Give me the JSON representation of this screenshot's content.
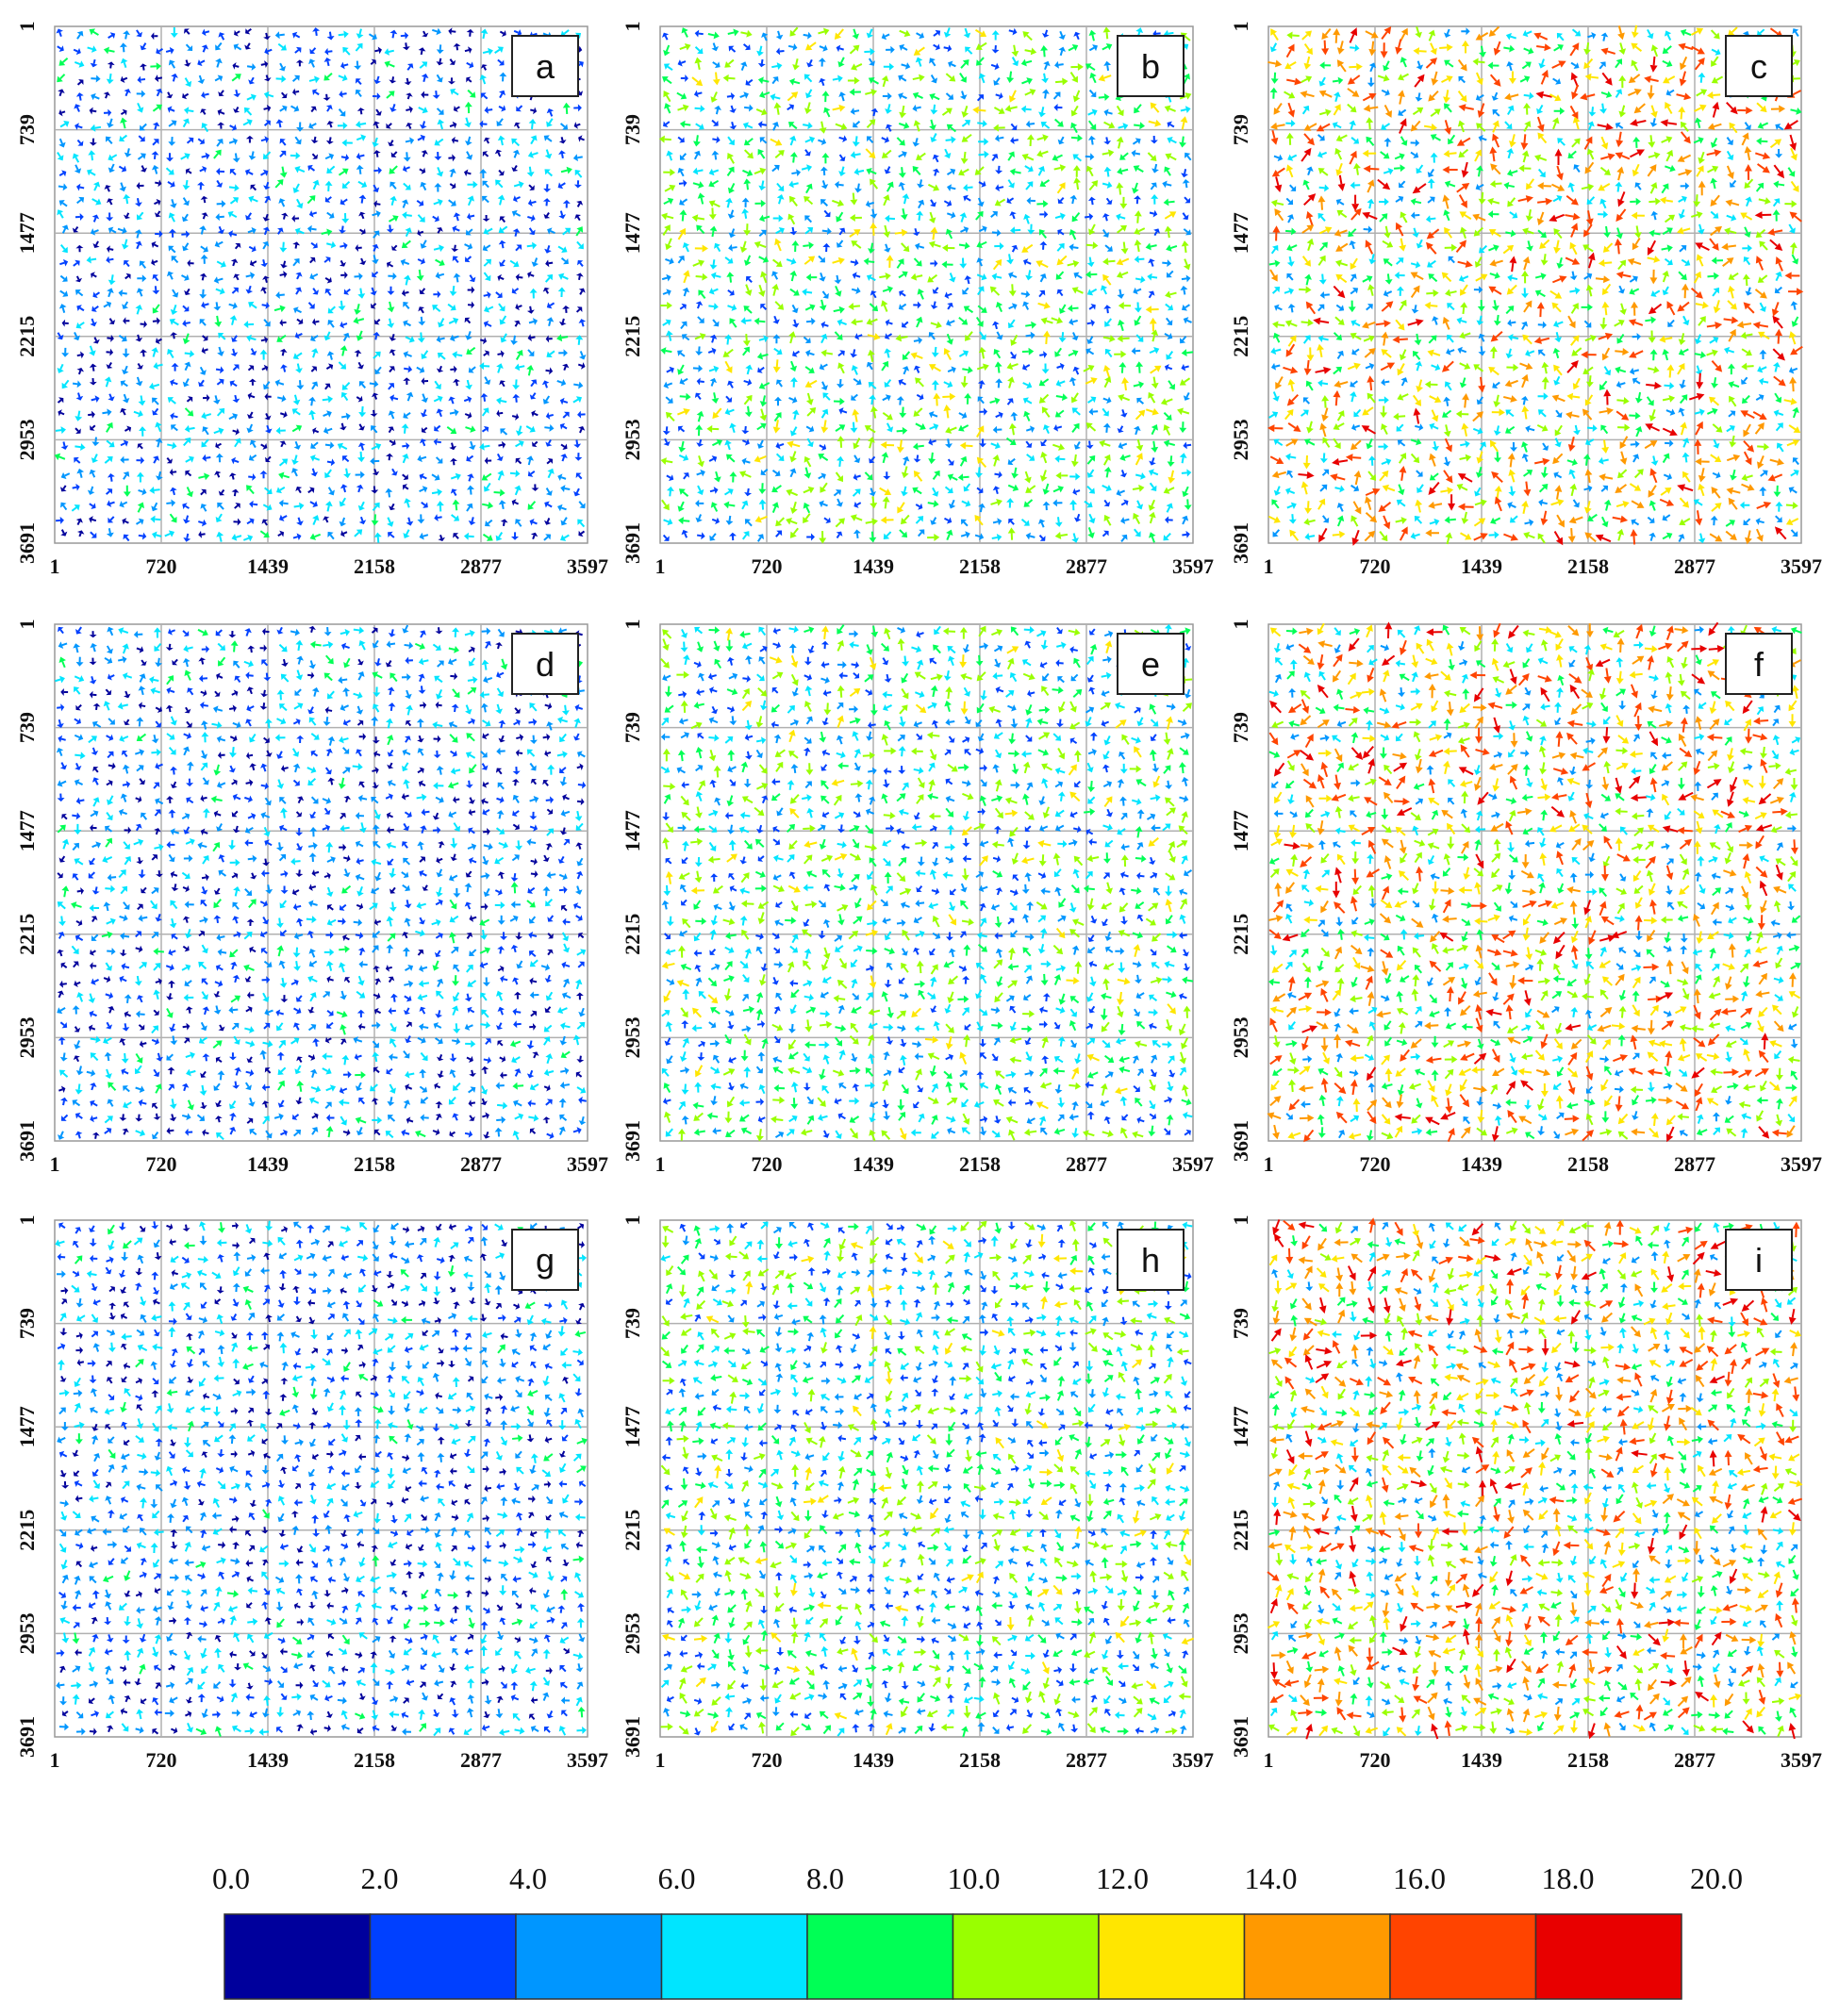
{
  "chart_data": {
    "type": "quiver",
    "title": "",
    "panels": [
      {
        "label": "a",
        "row": 0,
        "col": 0,
        "max_magnitude": 10.0,
        "dominant_range": [
          0.0,
          8.0
        ]
      },
      {
        "label": "b",
        "row": 0,
        "col": 1,
        "max_magnitude": 14.0,
        "dominant_range": [
          2.0,
          12.0
        ]
      },
      {
        "label": "c",
        "row": 0,
        "col": 2,
        "max_magnitude": 20.0,
        "dominant_range": [
          4.0,
          18.0
        ]
      },
      {
        "label": "d",
        "row": 1,
        "col": 0,
        "max_magnitude": 10.0,
        "dominant_range": [
          0.0,
          8.0
        ]
      },
      {
        "label": "e",
        "row": 1,
        "col": 1,
        "max_magnitude": 14.0,
        "dominant_range": [
          2.0,
          12.0
        ]
      },
      {
        "label": "f",
        "row": 1,
        "col": 2,
        "max_magnitude": 20.0,
        "dominant_range": [
          4.0,
          18.0
        ]
      },
      {
        "label": "g",
        "row": 2,
        "col": 0,
        "max_magnitude": 10.0,
        "dominant_range": [
          0.0,
          8.0
        ]
      },
      {
        "label": "h",
        "row": 2,
        "col": 1,
        "max_magnitude": 14.0,
        "dominant_range": [
          2.0,
          12.0
        ]
      },
      {
        "label": "i",
        "row": 2,
        "col": 2,
        "max_magnitude": 20.0,
        "dominant_range": [
          4.0,
          18.0
        ]
      }
    ],
    "x_ticks": [
      "1",
      "720",
      "1439",
      "2158",
      "2877",
      "3597"
    ],
    "y_ticks": [
      "1",
      "739",
      "1477",
      "2215",
      "2953",
      "3691"
    ],
    "xlim": [
      1,
      3597
    ],
    "ylim": [
      1,
      3691
    ],
    "grid": true,
    "colorbar": {
      "tick_labels": [
        "0.0",
        "2.0",
        "4.0",
        "6.0",
        "8.0",
        "10.0",
        "12.0",
        "14.0",
        "16.0",
        "18.0",
        "20.0"
      ],
      "range": [
        0.0,
        20.0
      ],
      "colors": [
        "#00009c",
        "#0040ff",
        "#0096ff",
        "#00e5ff",
        "#00ff55",
        "#99ff00",
        "#ffe600",
        "#ff9900",
        "#ff4400",
        "#e80000"
      ],
      "placement": "bottom"
    }
  }
}
